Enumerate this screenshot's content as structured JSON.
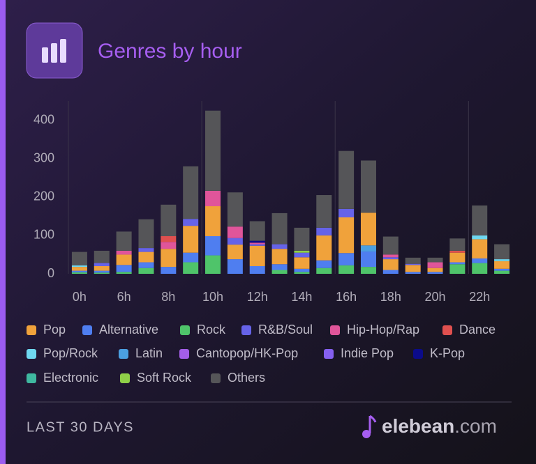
{
  "chart_data": {
    "type": "bar",
    "stacked": true,
    "title": "Genres by hour",
    "categories": [
      "0h",
      null,
      "6h",
      null,
      "8h",
      null,
      "10h",
      null,
      "12h",
      null,
      "14h",
      null,
      "16h",
      null,
      "18h",
      null,
      "20h",
      null,
      "22h",
      null
    ],
    "ylim": [
      0,
      450
    ],
    "yticks": [
      0,
      100,
      200,
      300,
      400
    ],
    "grid": false,
    "series": [
      {
        "name": "Pop",
        "color": "#f0a23b",
        "values": [
          10,
          12,
          27,
          27,
          47,
          70,
          78,
          38,
          53,
          40,
          30,
          65,
          93,
          85,
          28,
          18,
          10,
          25,
          50,
          20
        ]
      },
      {
        "name": "Alternative",
        "color": "#4f7ef0",
        "values": [
          4,
          5,
          18,
          15,
          18,
          25,
          50,
          38,
          20,
          15,
          8,
          20,
          32,
          40,
          10,
          5,
          5,
          5,
          12,
          5
        ]
      },
      {
        "name": "Rock",
        "color": "#4fc46a",
        "values": [
          4,
          3,
          5,
          15,
          0,
          30,
          48,
          0,
          0,
          10,
          5,
          15,
          22,
          18,
          0,
          0,
          0,
          25,
          28,
          8
        ]
      },
      {
        "name": "R&B/Soul",
        "color": "#6663e8",
        "values": [
          0,
          8,
          0,
          10,
          0,
          18,
          0,
          17,
          4,
          12,
          12,
          20,
          22,
          0,
          5,
          3,
          0,
          0,
          0,
          0
        ]
      },
      {
        "name": "Hip-Hop/Rap",
        "color": "#e0559a",
        "values": [
          0,
          0,
          10,
          0,
          18,
          0,
          40,
          30,
          4,
          0,
          0,
          0,
          0,
          0,
          7,
          0,
          15,
          0,
          0,
          0
        ]
      },
      {
        "name": "Dance",
        "color": "#e0504f",
        "values": [
          0,
          0,
          0,
          0,
          15,
          0,
          0,
          0,
          0,
          0,
          0,
          0,
          0,
          0,
          0,
          0,
          0,
          5,
          0,
          0
        ]
      },
      {
        "name": "Pop/Rock",
        "color": "#6fd8f0",
        "values": [
          4,
          0,
          0,
          0,
          0,
          0,
          0,
          0,
          0,
          0,
          0,
          0,
          0,
          0,
          0,
          0,
          0,
          0,
          10,
          5
        ]
      },
      {
        "name": "Latin",
        "color": "#4b9fe0",
        "values": [
          0,
          0,
          0,
          0,
          0,
          0,
          0,
          0,
          0,
          0,
          0,
          0,
          0,
          16,
          0,
          0,
          0,
          0,
          0,
          0
        ]
      },
      {
        "name": "Cantopop/HK-Pop",
        "color": "#a35ee8",
        "values": [
          0,
          0,
          0,
          0,
          0,
          0,
          0,
          0,
          0,
          0,
          0,
          0,
          0,
          0,
          0,
          0,
          0,
          0,
          0,
          0
        ]
      },
      {
        "name": "Indie Pop",
        "color": "#8560f0",
        "values": [
          0,
          0,
          0,
          0,
          0,
          0,
          0,
          0,
          0,
          0,
          0,
          0,
          0,
          0,
          0,
          0,
          0,
          0,
          0,
          0
        ]
      },
      {
        "name": "K-Pop",
        "color": "#0b0b8a",
        "values": [
          0,
          0,
          0,
          0,
          0,
          0,
          0,
          0,
          5,
          0,
          0,
          0,
          0,
          0,
          0,
          0,
          0,
          0,
          0,
          0
        ]
      },
      {
        "name": "Electronic",
        "color": "#3fb8a0",
        "values": [
          0,
          0,
          0,
          0,
          0,
          0,
          0,
          0,
          0,
          0,
          0,
          0,
          0,
          0,
          0,
          0,
          0,
          0,
          0,
          0
        ]
      },
      {
        "name": "Soft Rock",
        "color": "#8fd048",
        "values": [
          0,
          0,
          0,
          0,
          0,
          0,
          0,
          0,
          0,
          0,
          5,
          0,
          0,
          0,
          0,
          0,
          0,
          0,
          0,
          0
        ]
      },
      {
        "name": "Others",
        "color": "#555558",
        "values": [
          35,
          32,
          50,
          75,
          82,
          137,
          209,
          89,
          51,
          81,
          60,
          85,
          151,
          136,
          47,
          16,
          12,
          32,
          78,
          39
        ]
      }
    ]
  },
  "footer": {
    "period": "LAST 30 DAYS",
    "brand": "elebean",
    "domain": ".com"
  }
}
